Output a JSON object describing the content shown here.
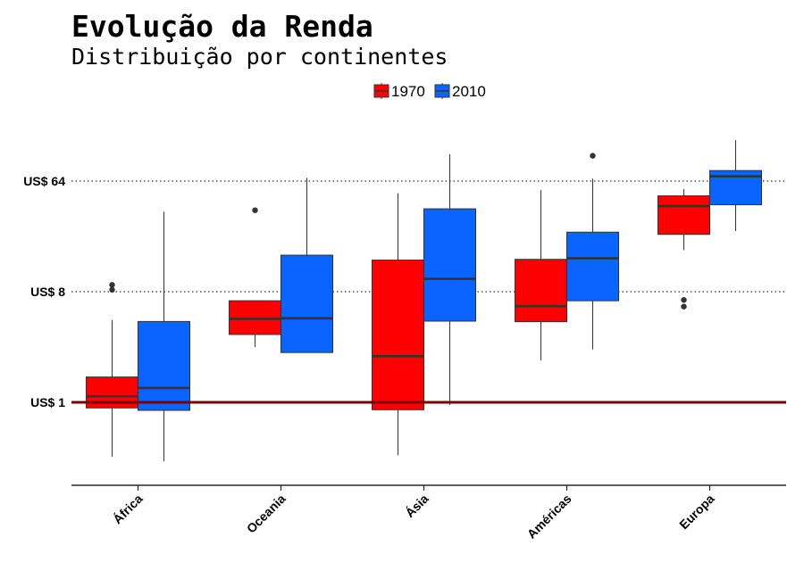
{
  "chart_data": {
    "type": "boxplot",
    "title": "Evolução da Renda",
    "subtitle": "Distribuição por continentes",
    "categories": [
      "África",
      "Oceania",
      "Ásia",
      "Américas",
      "Europa"
    ],
    "y_scale": "log2",
    "ylim": [
      0.3,
      160
    ],
    "y_ticks": [
      {
        "value": 1,
        "label": "US$ 1"
      },
      {
        "value": 8,
        "label": "US$ 8"
      },
      {
        "value": 64,
        "label": "US$ 64"
      }
    ],
    "grid": "horizontal dotted at y ticks",
    "legend": "top-center",
    "reference_line": {
      "value": 1,
      "color": "#7a0000"
    },
    "series": [
      {
        "name": "1970",
        "color": "#ff0000",
        "boxes": [
          {
            "whisker_low": 0.36,
            "q1": 0.9,
            "median": 1.12,
            "q3": 1.61,
            "whisker_high": 4.7,
            "outliers": [
              9.1,
              8.3
            ]
          },
          {
            "whisker_low": 2.82,
            "q1": 3.58,
            "median": 4.8,
            "q3": 6.75,
            "whisker_high": null,
            "outliers": [
              37
            ]
          },
          {
            "whisker_low": 0.37,
            "q1": 0.87,
            "median": 2.38,
            "q3": 14.5,
            "whisker_high": 51,
            "outliers": []
          },
          {
            "whisker_low": 2.2,
            "q1": 4.55,
            "median": 6.1,
            "q3": 14.7,
            "whisker_high": 54,
            "outliers": []
          },
          {
            "whisker_low": 17.5,
            "q1": 23.5,
            "median": 40,
            "q3": 48.5,
            "whisker_high": 55,
            "outliers": [
              6.85,
              6.05
            ]
          }
        ]
      },
      {
        "name": "2010",
        "color": "#0a64ff",
        "boxes": [
          {
            "whisker_low": 0.33,
            "q1": 0.86,
            "median": 1.31,
            "q3": 4.57,
            "whisker_high": 36,
            "outliers": []
          },
          {
            "whisker_low": null,
            "q1": 2.55,
            "median": 4.85,
            "q3": 15.9,
            "whisker_high": 68,
            "outliers": []
          },
          {
            "whisker_low": 0.95,
            "q1": 4.6,
            "median": 10.2,
            "q3": 38,
            "whisker_high": 106,
            "outliers": []
          },
          {
            "whisker_low": 2.7,
            "q1": 6.75,
            "median": 15,
            "q3": 24.5,
            "whisker_high": 67,
            "outliers": [
              103
            ]
          },
          {
            "whisker_low": 25,
            "q1": 41,
            "median": 70,
            "q3": 78,
            "whisker_high": 138,
            "outliers": []
          }
        ]
      }
    ]
  }
}
